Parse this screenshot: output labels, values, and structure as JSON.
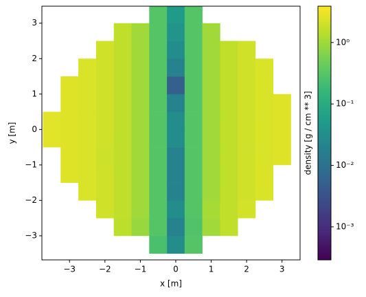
{
  "chart_data": {
    "type": "histogram2d",
    "xlabel": "x [m]",
    "ylabel": "y [m]",
    "colorbar_label": "density [g / cm ** 3]",
    "colormap": "viridis",
    "color_scale": "log",
    "xlim": [
      -3.78,
      3.51
    ],
    "ylim": [
      -3.68,
      3.48
    ],
    "clim": [
      0.00029,
      3.9
    ],
    "xticks": [
      {
        "value": -3,
        "label": "−3"
      },
      {
        "value": -2,
        "label": "−2"
      },
      {
        "value": -1,
        "label": "−1"
      },
      0,
      1,
      2,
      3
    ],
    "yticks": [
      {
        "value": -3,
        "label": "−3"
      },
      {
        "value": -2,
        "label": "−2"
      },
      {
        "value": -1,
        "label": "−1"
      },
      0,
      1,
      2,
      3
    ],
    "cticks": [
      {
        "value": 0.001,
        "label": "10⁻³"
      },
      {
        "value": 0.01,
        "label": "10⁻²"
      },
      {
        "value": 0.1,
        "label": "10⁻¹"
      },
      {
        "value": 1,
        "label": "10⁰"
      }
    ],
    "xbins": [
      -3.75,
      -3.25,
      -2.75,
      -2.25,
      -1.75,
      -1.25,
      -0.75,
      -0.25,
      0.25,
      0.75,
      1.25,
      1.75,
      2.25,
      2.75,
      3.25
    ],
    "ybins": [
      -3.5,
      -3.0,
      -2.5,
      -2.0,
      -1.5,
      -1.0,
      -0.5,
      0.0,
      0.5,
      1.0,
      1.5,
      2.0,
      2.5,
      3.0,
      3.5
    ],
    "z": [
      [
        null,
        null,
        null,
        null,
        null,
        null,
        0.25,
        0.03,
        0.3,
        null,
        null,
        null,
        null,
        null
      ],
      [
        null,
        null,
        null,
        null,
        1.5,
        0.9,
        0.3,
        0.02,
        0.28,
        1.0,
        1.6,
        null,
        null,
        null
      ],
      [
        null,
        null,
        null,
        2.0,
        1.6,
        1.0,
        0.3,
        0.03,
        0.3,
        1.1,
        1.6,
        2.1,
        null,
        null
      ],
      [
        null,
        null,
        2.3,
        2.0,
        1.6,
        1.0,
        0.3,
        0.02,
        0.3,
        1.0,
        1.6,
        2.0,
        2.3,
        null
      ],
      [
        null,
        2.5,
        2.3,
        2.0,
        1.6,
        1.0,
        0.3,
        0.02,
        0.3,
        1.0,
        1.6,
        2.0,
        2.4,
        null
      ],
      [
        null,
        2.5,
        2.3,
        1.9,
        1.6,
        1.0,
        0.3,
        0.02,
        0.3,
        1.0,
        1.6,
        2.0,
        2.3,
        2.5
      ],
      [
        2.6,
        2.5,
        2.3,
        2.0,
        1.6,
        1.0,
        0.3,
        0.03,
        0.3,
        1.0,
        1.6,
        2.0,
        2.3,
        2.5
      ],
      [
        2.6,
        2.5,
        2.3,
        2.0,
        1.6,
        1.0,
        0.3,
        0.03,
        0.3,
        1.0,
        1.6,
        2.0,
        2.3,
        2.5
      ],
      [
        null,
        2.5,
        2.3,
        2.0,
        1.6,
        1.0,
        0.3,
        0.02,
        0.3,
        1.0,
        1.6,
        2.0,
        2.3,
        2.5
      ],
      [
        null,
        2.5,
        2.3,
        2.0,
        1.6,
        1.0,
        0.3,
        0.005,
        0.3,
        1.0,
        1.6,
        2.0,
        2.3,
        null
      ],
      [
        null,
        null,
        2.3,
        2.0,
        1.6,
        1.0,
        0.3,
        0.02,
        0.3,
        1.0,
        1.6,
        2.0,
        2.3,
        null
      ],
      [
        null,
        null,
        null,
        2.0,
        1.6,
        1.0,
        0.3,
        0.03,
        0.3,
        1.0,
        1.6,
        2.0,
        null,
        null
      ],
      [
        null,
        null,
        null,
        null,
        1.6,
        1.0,
        0.3,
        0.04,
        0.3,
        1.0,
        null,
        null,
        null,
        null
      ],
      [
        null,
        null,
        null,
        null,
        null,
        null,
        0.3,
        0.05,
        0.3,
        null,
        null,
        null,
        null,
        null
      ]
    ]
  }
}
